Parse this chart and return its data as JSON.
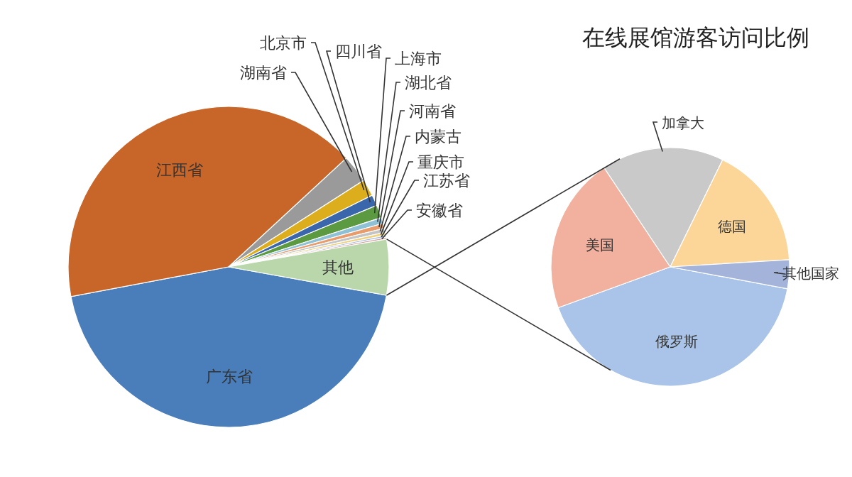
{
  "chart_data": [
    {
      "type": "pie",
      "title": "在线展馆游客访问比例",
      "categories": [
        "广东省",
        "江西省",
        "湖南省",
        "北京市",
        "四川省",
        "上海市",
        "湖北省",
        "河南省",
        "内蒙古",
        "重庆市",
        "江苏省",
        "安徽省",
        "其他"
      ],
      "values": [
        44.2,
        41.1,
        2.8,
        1.7,
        1.1,
        1.3,
        0.6,
        0.5,
        0.4,
        0.3,
        0.2,
        0.2,
        5.6
      ],
      "colors": [
        "#4a7ebb",
        "#c8662a",
        "#9a9a9a",
        "#dcae1e",
        "#3a66ac",
        "#5c9a42",
        "#8ec0d6",
        "#e89c6c",
        "#c4c4c4",
        "#f0d27e",
        "#a4bce2",
        "#d4a4a0",
        "#b9d7ab"
      ]
    },
    {
      "type": "pie",
      "categories": [
        "俄罗斯",
        "美国",
        "加拿大",
        "德国",
        "其他国家"
      ],
      "values": [
        41.5,
        21.2,
        16.6,
        16.8,
        3.9
      ],
      "colors": [
        "#a9c4e8",
        "#f2b09e",
        "#c9c9c9",
        "#fcd598",
        "#a3b3da"
      ]
    }
  ]
}
